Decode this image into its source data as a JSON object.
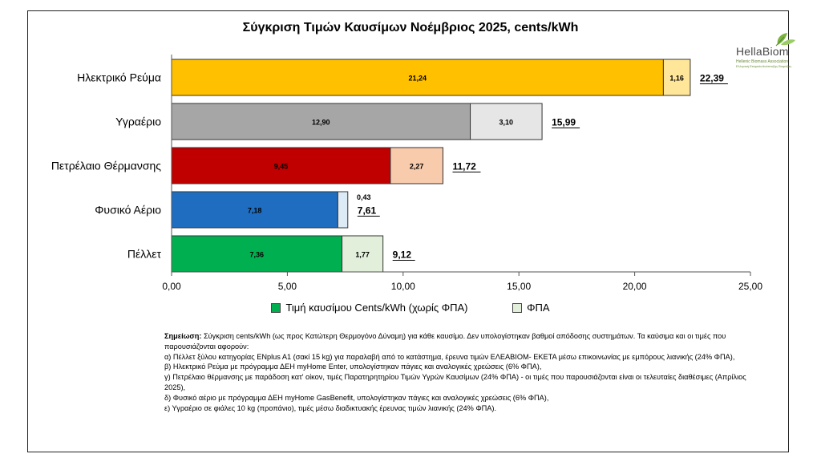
{
  "chart_data": {
    "type": "bar",
    "orientation": "horizontal",
    "stacked": true,
    "title": "Σύγκριση Τιμών Καυσίμων Νοέμβριος 2025, cents/kWh",
    "categories": [
      "Ηλεκτρικό Ρεύμα",
      "Υγραέριο",
      "Πετρέλαιο Θέρμανσης",
      "Φυσικό Αέριο",
      "Πέλλετ"
    ],
    "series": [
      {
        "name": "Τιμή καυσίμου Cents/kWh (χωρίς ΦΠΑ)",
        "values": [
          21.24,
          12.9,
          9.45,
          7.18,
          7.36
        ]
      },
      {
        "name": "ΦΠΑ",
        "values": [
          1.16,
          3.1,
          2.27,
          0.43,
          1.77
        ]
      }
    ],
    "value_labels": [
      [
        "21,24",
        "12,90",
        "9,45",
        "7,18",
        "7,36"
      ],
      [
        "1,16",
        "3,10",
        "2,27",
        "0,43",
        "1,77"
      ]
    ],
    "totals": [
      22.39,
      15.99,
      11.72,
      7.61,
      9.12
    ],
    "total_labels": [
      "22,39",
      "15,99",
      "11,72",
      "7,61",
      "9,12"
    ],
    "base_colors": [
      "#FFC000",
      "#A6A6A6",
      "#C00000",
      "#1F6DC0",
      "#00B050"
    ],
    "vat_colors": [
      "#FFE699",
      "#E7E6E6",
      "#F8CBAD",
      "#DDEBF7",
      "#E2EFDA"
    ],
    "xlim": [
      0,
      25
    ],
    "xticks": [
      "0,00",
      "5,00",
      "10,00",
      "15,00",
      "20,00",
      "25,00"
    ],
    "legend_position": "bottom",
    "legend_colors": [
      "#00B050",
      "#E2EFDA"
    ],
    "grid": false
  },
  "logo": {
    "name": "HellaBiom",
    "subtitle": "Hellenic Biomass Association",
    "subtitle_gr": "Ελληνική Εταιρεία Ανάπτυξης Βιομάζας"
  },
  "note": {
    "label": "Σημείωση:",
    "intro": " Σύγκριση cents/kWh (ως προς Κατώτερη Θερμογόνο Δύναμη) για κάθε καυσίμο. Δεν υπολογίστηκαν βαθμοί απόδοσης συστημάτων. Τα καύσιμα και οι τιμές που παρουσιάζονται αφορούν:",
    "items": [
      "α) Πέλλετ ξύλου κατηγορίας ENplus A1 (σακί 15 kg) για παραλαβή από το κατάστημα, έρευνα τιμών ΕΛΕΑΒΙΟΜ- ΕΚΕΤΑ μέσω  επικοινωνίας με εμπόρους λιανικής (24% ΦΠΑ),",
      "β) Ηλεκτρικό Ρεύμα με πρόγραμμα ΔΕΗ myHome Enter, υπολογίστηκαν πάγιες και αναλογικές χρεώσεις (6% ΦΠΑ),",
      "γ) Πετρέλαιο θέρμανσης με παράδοση κατ' οίκον, τιμές Παρατηρητηρίου Τιμών Υγρών Καυσίμων (24% ΦΠΑ) - οι τιμές που παρουσιάζονται είναι οι τελευταίες διαθέσιμες (Απρίλιος 2025),",
      "δ) Φυσικό αέριο με πρόγραμμα ΔΕΗ myHome GasBenefit, υπολογίστηκαν πάγιες και αναλογικές χρεώσεις (6% ΦΠΑ),",
      "ε) Υγραέριο σε φιάλες 10 kg (προπάνιο), τιμές μέσω διαδικτυακής έρευνας τιμών λιανικής (24% ΦΠΑ)."
    ]
  }
}
